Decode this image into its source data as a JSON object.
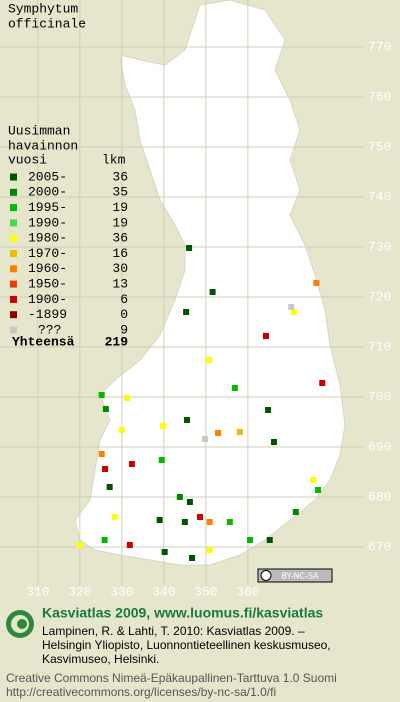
{
  "title": [
    "Symphytum",
    "officinale"
  ],
  "legend": {
    "heading": [
      "Uusimman",
      "havainnon",
      "vuosi"
    ],
    "count_heading": "lkm",
    "rows": [
      {
        "label": "2005-",
        "count": 36,
        "color": "#005500"
      },
      {
        "label": "2000-",
        "count": 35,
        "color": "#008800"
      },
      {
        "label": "1995-",
        "count": 19,
        "color": "#00bb00"
      },
      {
        "label": "1990-",
        "count": 19,
        "color": "#44dd44"
      },
      {
        "label": "1980-",
        "count": 36,
        "color": "#ffff00"
      },
      {
        "label": "1970-",
        "count": 16,
        "color": "#e8c000"
      },
      {
        "label": "1960-",
        "count": 30,
        "color": "#ff8000"
      },
      {
        "label": "1950-",
        "count": 13,
        "color": "#e84000"
      },
      {
        "label": "1900-",
        "count": 6,
        "color": "#cc0000"
      },
      {
        "label": "-1899",
        "count": 0,
        "color": "#880000"
      },
      {
        "label": "???",
        "count": 9,
        "color": "#c8c8c8"
      }
    ],
    "total_label": "Yhteensä",
    "total": 219
  },
  "map": {
    "xlim": [
      301,
      396.2
    ],
    "ylim": [
      779.4,
      667.4
    ],
    "xticks": [
      310,
      320,
      330,
      340,
      350,
      360
    ],
    "yticks": [
      770,
      760,
      750,
      740,
      730,
      720,
      710,
      700,
      690,
      680,
      670
    ],
    "points": [
      [
        346,
        729.8,
        0
      ],
      [
        351.6,
        721,
        0
      ],
      [
        345.3,
        717,
        0
      ],
      [
        364.3,
        712.2,
        8
      ],
      [
        377.7,
        702.8,
        8
      ],
      [
        371,
        717,
        4
      ],
      [
        370.3,
        718,
        10
      ],
      [
        376.3,
        722.8,
        6
      ],
      [
        350.7,
        707.4,
        4
      ],
      [
        325.2,
        700.4,
        2
      ],
      [
        331.2,
        699.8,
        4
      ],
      [
        356.9,
        701.8,
        2
      ],
      [
        364.8,
        697.4,
        0
      ],
      [
        366.2,
        691,
        0
      ],
      [
        352.9,
        692.8,
        6
      ],
      [
        358.1,
        693,
        5
      ],
      [
        330,
        693.4,
        4
      ],
      [
        326,
        685.6,
        8
      ],
      [
        327.1,
        682,
        0
      ],
      [
        328.3,
        676,
        4
      ],
      [
        343.8,
        680,
        1
      ],
      [
        346.2,
        679,
        0
      ],
      [
        348.6,
        676,
        8
      ],
      [
        345,
        675,
        0
      ],
      [
        339,
        675.4,
        0
      ],
      [
        350.9,
        675,
        6
      ],
      [
        355.7,
        675,
        2
      ],
      [
        371.4,
        677,
        1
      ],
      [
        376.7,
        681.4,
        2
      ],
      [
        375.5,
        683.4,
        4
      ],
      [
        340.2,
        669,
        0
      ],
      [
        346.7,
        667.8,
        0
      ],
      [
        350.9,
        669.4,
        4
      ],
      [
        331.9,
        670.4,
        8
      ],
      [
        325.9,
        671.4,
        2
      ],
      [
        320,
        670.4,
        4
      ],
      [
        360.5,
        671.4,
        2
      ],
      [
        365.2,
        671.4,
        0
      ],
      [
        326.2,
        697.6,
        1
      ],
      [
        325.2,
        688.6,
        6
      ],
      [
        332.4,
        686.6,
        8
      ],
      [
        339.5,
        687.4,
        2
      ],
      [
        339.8,
        694.2,
        4
      ],
      [
        349.8,
        691.6,
        10
      ],
      [
        345.5,
        695.4,
        0
      ]
    ]
  },
  "badge": "BY-NC-SA",
  "footer": {
    "site": "Kasviatlas 2009, www.luomus.fi/kasviatlas",
    "citation": [
      "Lampinen, R. & Lahti, T. 2010: Kasviatlas 2009. –",
      "Helsingin Yliopisto, Luonnontieteellinen keskusmuseo,",
      "Kasvimuseo, Helsinki."
    ],
    "license": [
      "Creative Commons Nimeä-Epäkaupallinen-Tarttuva 1.0 Suomi",
      "http://creativecommons.org/licenses/by-nc-sa/1.0/fi"
    ]
  }
}
